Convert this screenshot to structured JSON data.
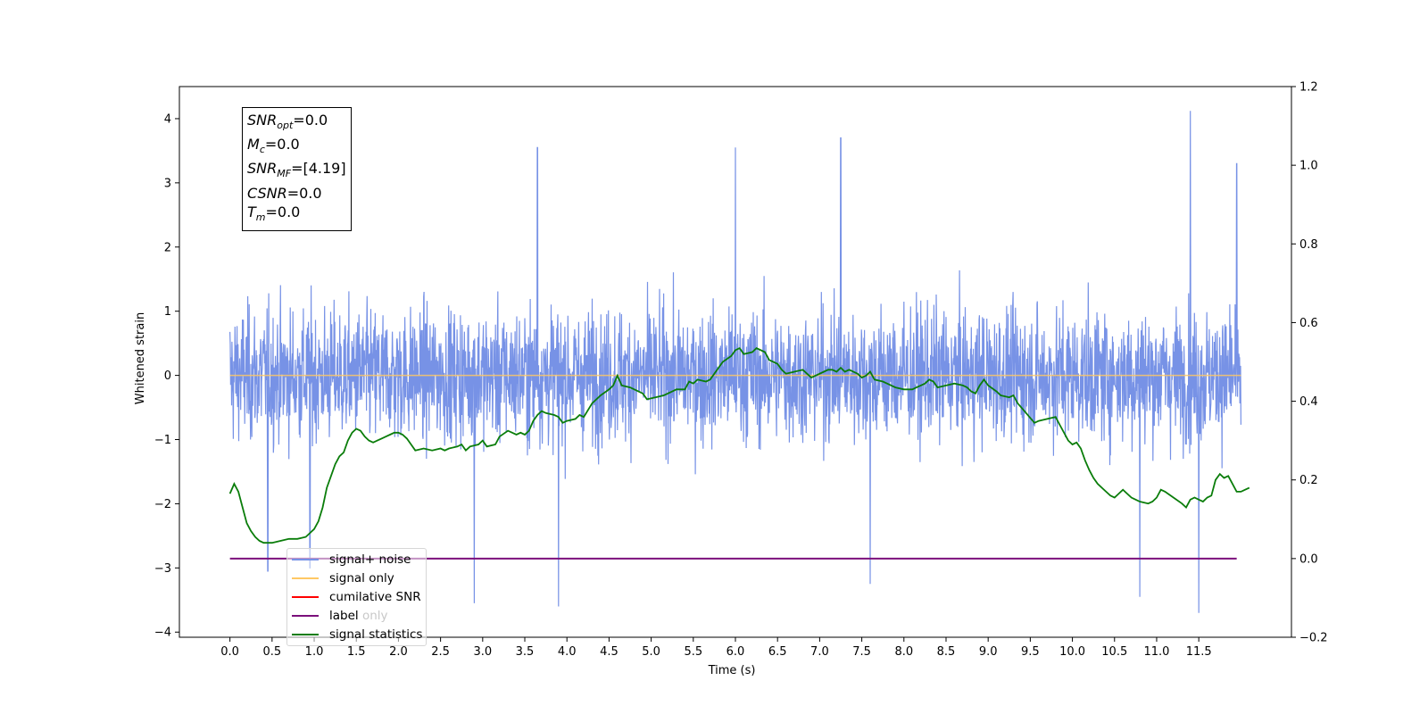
{
  "chart_data": {
    "type": "line",
    "xlabel": "Time (s)",
    "ylabel": "Whitened strain",
    "xlim": [
      -0.6,
      12.6
    ],
    "ylim": [
      -4.08,
      4.5
    ],
    "y2lim": [
      -0.2,
      1.2
    ],
    "xticks": [
      "0.0",
      "0.5",
      "1.0",
      "1.5",
      "2.0",
      "2.5",
      "3.0",
      "3.5",
      "4.0",
      "4.5",
      "5.0",
      "5.5",
      "6.0",
      "6.5",
      "7.0",
      "7.5",
      "8.0",
      "8.5",
      "9.0",
      "9.5",
      "10.0",
      "10.5",
      "11.0",
      "11.5"
    ],
    "yticks": [
      "4",
      "3",
      "2",
      "1",
      "0",
      "−1",
      "−2",
      "−3",
      "−4"
    ],
    "y2ticks": [
      "1.2",
      "1.0",
      "0.8",
      "0.6",
      "0.4",
      "0.2",
      "0.0",
      "−0.2"
    ],
    "x_range": [
      0.0,
      12.0
    ],
    "colors": {
      "signal_noise": "#7792e6",
      "signal_only": "#ffc864",
      "cumulative_snr": "#ff0000",
      "label": "#7b0f7b",
      "signal_statistics": "#0a7d0a"
    },
    "signal_only_level": 0.0,
    "label_level_right_axis": 0.0,
    "noise_envelope_peaks": [
      {
        "x": 0.45,
        "y": -3.05
      },
      {
        "x": 0.95,
        "y": -3.0
      },
      {
        "x": 2.9,
        "y": -3.55
      },
      {
        "x": 3.9,
        "y": -3.6
      },
      {
        "x": 7.6,
        "y": -3.25
      },
      {
        "x": 10.8,
        "y": -3.45
      },
      {
        "x": 11.4,
        "y": 4.12
      },
      {
        "x": 11.5,
        "y": -3.7
      },
      {
        "x": 7.25,
        "y": 3.7
      },
      {
        "x": 6.0,
        "y": 3.55
      },
      {
        "x": 3.65,
        "y": 3.55
      },
      {
        "x": 11.95,
        "y": 3.3
      }
    ],
    "signal_statistics": [
      [
        0.0,
        0.165
      ],
      [
        0.05,
        0.19
      ],
      [
        0.1,
        0.17
      ],
      [
        0.15,
        0.13
      ],
      [
        0.2,
        0.09
      ],
      [
        0.25,
        0.07
      ],
      [
        0.3,
        0.055
      ],
      [
        0.35,
        0.045
      ],
      [
        0.4,
        0.04
      ],
      [
        0.5,
        0.04
      ],
      [
        0.6,
        0.045
      ],
      [
        0.7,
        0.05
      ],
      [
        0.8,
        0.05
      ],
      [
        0.9,
        0.055
      ],
      [
        1.0,
        0.075
      ],
      [
        1.05,
        0.095
      ],
      [
        1.1,
        0.13
      ],
      [
        1.15,
        0.18
      ],
      [
        1.2,
        0.21
      ],
      [
        1.25,
        0.24
      ],
      [
        1.3,
        0.26
      ],
      [
        1.35,
        0.27
      ],
      [
        1.4,
        0.3
      ],
      [
        1.45,
        0.32
      ],
      [
        1.5,
        0.33
      ],
      [
        1.55,
        0.325
      ],
      [
        1.6,
        0.31
      ],
      [
        1.65,
        0.3
      ],
      [
        1.7,
        0.295
      ],
      [
        1.75,
        0.3
      ],
      [
        1.8,
        0.305
      ],
      [
        1.85,
        0.31
      ],
      [
        1.9,
        0.315
      ],
      [
        1.95,
        0.32
      ],
      [
        2.0,
        0.32
      ],
      [
        2.05,
        0.315
      ],
      [
        2.1,
        0.305
      ],
      [
        2.15,
        0.29
      ],
      [
        2.2,
        0.275
      ],
      [
        2.3,
        0.28
      ],
      [
        2.4,
        0.275
      ],
      [
        2.5,
        0.28
      ],
      [
        2.55,
        0.275
      ],
      [
        2.6,
        0.28
      ],
      [
        2.7,
        0.285
      ],
      [
        2.75,
        0.29
      ],
      [
        2.8,
        0.275
      ],
      [
        2.85,
        0.285
      ],
      [
        2.95,
        0.29
      ],
      [
        3.0,
        0.3
      ],
      [
        3.05,
        0.285
      ],
      [
        3.15,
        0.29
      ],
      [
        3.2,
        0.31
      ],
      [
        3.3,
        0.325
      ],
      [
        3.4,
        0.315
      ],
      [
        3.45,
        0.32
      ],
      [
        3.5,
        0.315
      ],
      [
        3.55,
        0.325
      ],
      [
        3.6,
        0.35
      ],
      [
        3.65,
        0.365
      ],
      [
        3.7,
        0.375
      ],
      [
        3.75,
        0.37
      ],
      [
        3.85,
        0.365
      ],
      [
        3.9,
        0.36
      ],
      [
        3.95,
        0.345
      ],
      [
        4.0,
        0.35
      ],
      [
        4.1,
        0.355
      ],
      [
        4.15,
        0.365
      ],
      [
        4.2,
        0.36
      ],
      [
        4.3,
        0.395
      ],
      [
        4.4,
        0.415
      ],
      [
        4.5,
        0.43
      ],
      [
        4.55,
        0.44
      ],
      [
        4.6,
        0.465
      ],
      [
        4.65,
        0.44
      ],
      [
        4.75,
        0.435
      ],
      [
        4.85,
        0.425
      ],
      [
        4.9,
        0.42
      ],
      [
        4.95,
        0.405
      ],
      [
        5.05,
        0.41
      ],
      [
        5.15,
        0.415
      ],
      [
        5.25,
        0.425
      ],
      [
        5.3,
        0.43
      ],
      [
        5.4,
        0.43
      ],
      [
        5.45,
        0.45
      ],
      [
        5.5,
        0.445
      ],
      [
        5.55,
        0.455
      ],
      [
        5.65,
        0.45
      ],
      [
        5.7,
        0.455
      ],
      [
        5.75,
        0.47
      ],
      [
        5.85,
        0.5
      ],
      [
        5.95,
        0.515
      ],
      [
        6.0,
        0.53
      ],
      [
        6.05,
        0.535
      ],
      [
        6.1,
        0.52
      ],
      [
        6.2,
        0.525
      ],
      [
        6.25,
        0.535
      ],
      [
        6.35,
        0.525
      ],
      [
        6.4,
        0.505
      ],
      [
        6.5,
        0.495
      ],
      [
        6.55,
        0.48
      ],
      [
        6.6,
        0.47
      ],
      [
        6.7,
        0.475
      ],
      [
        6.8,
        0.48
      ],
      [
        6.85,
        0.47
      ],
      [
        6.9,
        0.46
      ],
      [
        6.95,
        0.465
      ],
      [
        7.05,
        0.475
      ],
      [
        7.1,
        0.48
      ],
      [
        7.15,
        0.48
      ],
      [
        7.2,
        0.475
      ],
      [
        7.25,
        0.485
      ],
      [
        7.3,
        0.475
      ],
      [
        7.35,
        0.48
      ],
      [
        7.45,
        0.47
      ],
      [
        7.5,
        0.46
      ],
      [
        7.55,
        0.465
      ],
      [
        7.6,
        0.475
      ],
      [
        7.65,
        0.455
      ],
      [
        7.75,
        0.45
      ],
      [
        7.8,
        0.445
      ],
      [
        7.9,
        0.435
      ],
      [
        8.0,
        0.43
      ],
      [
        8.1,
        0.43
      ],
      [
        8.15,
        0.435
      ],
      [
        8.2,
        0.44
      ],
      [
        8.25,
        0.445
      ],
      [
        8.3,
        0.455
      ],
      [
        8.35,
        0.45
      ],
      [
        8.4,
        0.435
      ],
      [
        8.5,
        0.44
      ],
      [
        8.6,
        0.445
      ],
      [
        8.7,
        0.44
      ],
      [
        8.75,
        0.435
      ],
      [
        8.8,
        0.425
      ],
      [
        8.85,
        0.42
      ],
      [
        8.9,
        0.44
      ],
      [
        8.95,
        0.455
      ],
      [
        9.0,
        0.44
      ],
      [
        9.1,
        0.425
      ],
      [
        9.15,
        0.415
      ],
      [
        9.25,
        0.41
      ],
      [
        9.3,
        0.415
      ],
      [
        9.35,
        0.395
      ],
      [
        9.45,
        0.37
      ],
      [
        9.55,
        0.345
      ],
      [
        9.6,
        0.35
      ],
      [
        9.7,
        0.355
      ],
      [
        9.8,
        0.36
      ],
      [
        9.85,
        0.34
      ],
      [
        9.95,
        0.3
      ],
      [
        10.0,
        0.29
      ],
      [
        10.05,
        0.295
      ],
      [
        10.1,
        0.28
      ],
      [
        10.15,
        0.25
      ],
      [
        10.2,
        0.225
      ],
      [
        10.25,
        0.205
      ],
      [
        10.3,
        0.19
      ],
      [
        10.4,
        0.17
      ],
      [
        10.45,
        0.16
      ],
      [
        10.5,
        0.155
      ],
      [
        10.55,
        0.165
      ],
      [
        10.6,
        0.175
      ],
      [
        10.65,
        0.165
      ],
      [
        10.7,
        0.155
      ],
      [
        10.8,
        0.145
      ],
      [
        10.9,
        0.14
      ],
      [
        10.95,
        0.145
      ],
      [
        11.0,
        0.155
      ],
      [
        11.05,
        0.175
      ],
      [
        11.1,
        0.17
      ],
      [
        11.2,
        0.155
      ],
      [
        11.3,
        0.14
      ],
      [
        11.35,
        0.13
      ],
      [
        11.4,
        0.15
      ],
      [
        11.45,
        0.155
      ],
      [
        11.5,
        0.15
      ],
      [
        11.55,
        0.145
      ],
      [
        11.6,
        0.155
      ],
      [
        11.65,
        0.16
      ],
      [
        11.7,
        0.2
      ],
      [
        11.75,
        0.215
      ],
      [
        11.8,
        0.205
      ],
      [
        11.85,
        0.21
      ],
      [
        11.9,
        0.19
      ],
      [
        11.95,
        0.17
      ],
      [
        12.0,
        0.17
      ],
      [
        12.05,
        0.175
      ],
      [
        12.1,
        0.18
      ]
    ],
    "legend": [
      {
        "label": "signal+ noise",
        "color_key": "signal_noise"
      },
      {
        "label": "signal only",
        "color_key": "signal_only"
      },
      {
        "label": "cumilative SNR",
        "color_key": "cumulative_snr"
      },
      {
        "label": "label",
        "color_key": "label"
      },
      {
        "label": "signal statistics",
        "color_key": "signal_statistics"
      }
    ],
    "legend_placement": "lower-left",
    "legend_ghost_text": "label only",
    "annotation": [
      {
        "base": "SNR",
        "sub": "opt",
        "value": "=0.0"
      },
      {
        "base": "M",
        "sub": "c",
        "value": "=0.0"
      },
      {
        "base": "SNR",
        "sub": "MF",
        "value": "=[4.19]"
      },
      {
        "base": "CSNR",
        "sub": "",
        "value": "=0.0"
      },
      {
        "base": "T",
        "sub": "m",
        "value": "=0.0"
      }
    ]
  }
}
